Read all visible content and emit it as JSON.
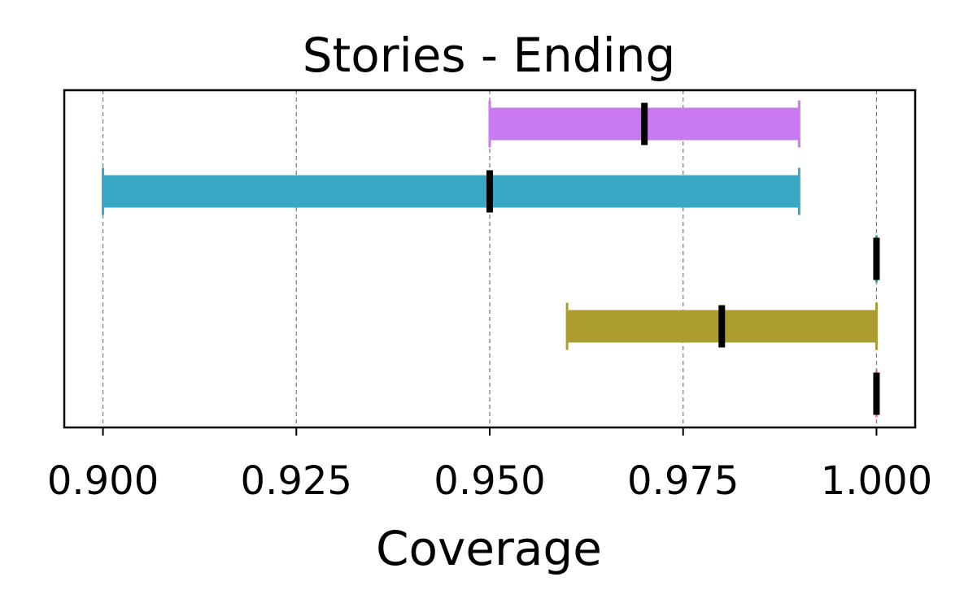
{
  "chart_data": {
    "type": "bar",
    "orientation": "horizontal-range",
    "title": "Stories - Ending",
    "xlabel": "Coverage",
    "ylabel": "",
    "xlim": [
      0.895,
      1.005
    ],
    "xticks": [
      "0.900",
      "0.925",
      "0.950",
      "0.975",
      "1.000"
    ],
    "xtick_values": [
      0.9,
      0.925,
      0.95,
      0.975,
      1.0
    ],
    "grid": "x-dashed",
    "series": [
      {
        "low": 0.95,
        "high": 0.99,
        "median": 0.97,
        "color": "#c979f2"
      },
      {
        "low": 0.9,
        "high": 0.99,
        "median": 0.95,
        "color": "#3aa8c5"
      },
      {
        "low": 1.0,
        "high": 1.0,
        "median": 1.0,
        "color": "#3aa68a"
      },
      {
        "low": 0.96,
        "high": 1.0,
        "median": 0.98,
        "color": "#ad9d31"
      },
      {
        "low": 1.0,
        "high": 1.0,
        "median": 1.0,
        "color": "#e8828f"
      }
    ]
  }
}
